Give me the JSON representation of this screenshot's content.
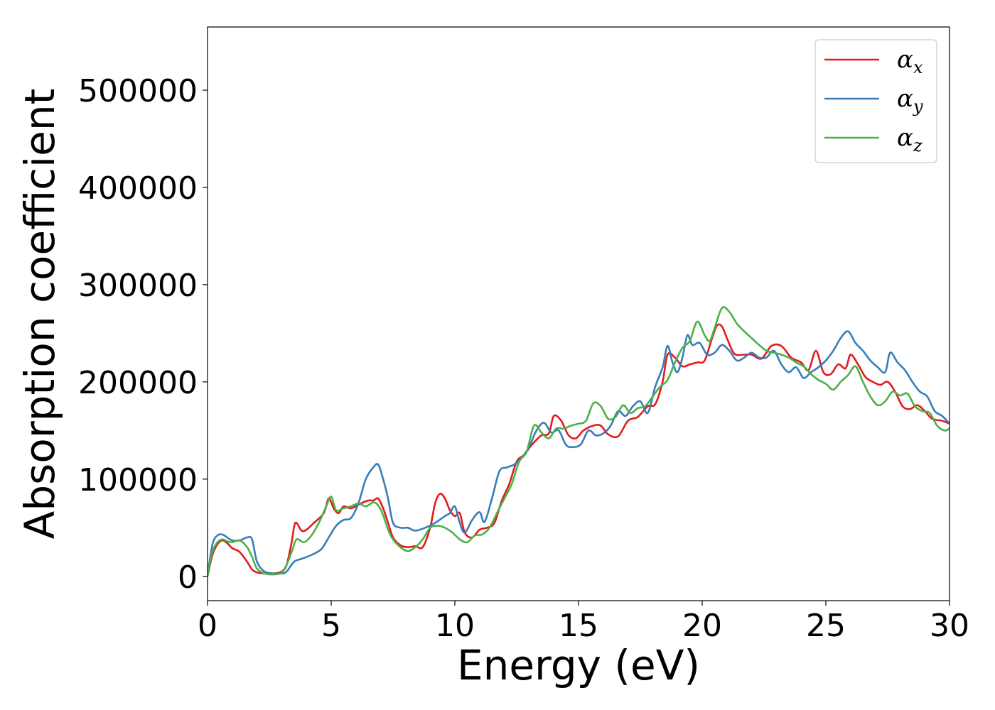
{
  "chart_data": {
    "type": "line",
    "xlabel": "Energy (eV)",
    "ylabel": "Absorption coefficient",
    "xlim": [
      0,
      30
    ],
    "ylim": [
      -25000,
      565000
    ],
    "xticks": [
      0,
      5,
      10,
      15,
      20,
      25,
      30
    ],
    "xtick_labels": [
      "0",
      "5",
      "10",
      "15",
      "20",
      "25",
      "30"
    ],
    "yticks": [
      0,
      100000,
      200000,
      300000,
      400000,
      500000
    ],
    "ytick_labels": [
      "0",
      "100000",
      "200000",
      "300000",
      "400000",
      "500000"
    ],
    "grid": false,
    "legend_position": "top-right",
    "series": [
      {
        "name": "α_x",
        "legend_symbol": "α",
        "legend_sub": "x",
        "color": "#e41a1c",
        "x": [
          0,
          0.2,
          0.4,
          0.6,
          0.8,
          1.0,
          1.3,
          1.6,
          1.8,
          2.0,
          2.3,
          2.7,
          3.0,
          3.2,
          3.4,
          3.55,
          3.8,
          4.0,
          4.3,
          4.7,
          4.9,
          5.1,
          5.3,
          5.5,
          5.8,
          6.2,
          6.5,
          6.7,
          6.9,
          7.1,
          7.3,
          7.5,
          7.8,
          8.1,
          8.4,
          8.7,
          9.0,
          9.2,
          9.4,
          9.6,
          9.8,
          10.0,
          10.2,
          10.4,
          10.7,
          11.0,
          11.3,
          11.6,
          11.9,
          12.2,
          12.5,
          12.8,
          13.1,
          13.5,
          13.8,
          14.0,
          14.3,
          14.6,
          14.9,
          15.2,
          15.6,
          15.9,
          16.2,
          16.6,
          17.0,
          17.4,
          17.8,
          18.1,
          18.4,
          18.6,
          18.9,
          19.2,
          19.5,
          19.8,
          20.1,
          20.4,
          20.6,
          20.8,
          21.0,
          21.3,
          21.7,
          22.0,
          22.4,
          22.8,
          23.2,
          23.6,
          24.0,
          24.3,
          24.6,
          24.9,
          25.2,
          25.5,
          25.8,
          26.0,
          26.3,
          26.6,
          26.9,
          27.2,
          27.5,
          27.8,
          28.1,
          28.4,
          28.7,
          29.0,
          29.3,
          29.7,
          30.0
        ],
        "y": [
          0,
          22000,
          33000,
          37000,
          34000,
          29000,
          25000,
          15000,
          7000,
          4000,
          3000,
          3000,
          5000,
          12000,
          35000,
          55000,
          47000,
          48000,
          55000,
          65000,
          80000,
          70000,
          65000,
          72000,
          70000,
          75000,
          78000,
          78000,
          80000,
          70000,
          55000,
          40000,
          32000,
          30000,
          31000,
          30000,
          50000,
          75000,
          85000,
          80000,
          68000,
          62000,
          65000,
          45000,
          40000,
          48000,
          50000,
          55000,
          78000,
          95000,
          118000,
          125000,
          135000,
          145000,
          147000,
          165000,
          160000,
          145000,
          142000,
          150000,
          155000,
          155000,
          146000,
          144000,
          160000,
          164000,
          175000,
          177000,
          200000,
          228000,
          225000,
          216000,
          218000,
          220000,
          222000,
          245000,
          258000,
          257000,
          245000,
          229000,
          228000,
          228000,
          224000,
          237000,
          237000,
          225000,
          220000,
          212000,
          232000,
          210000,
          208000,
          218000,
          214000,
          228000,
          218000,
          205000,
          200000,
          197000,
          200000,
          190000,
          175000,
          172000,
          176000,
          170000,
          162000,
          160000,
          157000
        ]
      },
      {
        "name": "α_y",
        "legend_symbol": "α",
        "legend_sub": "y",
        "color": "#377eb8",
        "x": [
          0,
          0.2,
          0.4,
          0.6,
          0.8,
          1.0,
          1.3,
          1.6,
          1.8,
          2.0,
          2.3,
          2.7,
          3.0,
          3.2,
          3.5,
          3.8,
          4.2,
          4.6,
          4.9,
          5.2,
          5.5,
          5.8,
          6.1,
          6.4,
          6.7,
          6.9,
          7.1,
          7.3,
          7.5,
          7.8,
          8.1,
          8.4,
          8.8,
          9.2,
          9.6,
          9.8,
          10.0,
          10.2,
          10.4,
          10.7,
          11.0,
          11.2,
          11.5,
          11.8,
          12.1,
          12.4,
          12.7,
          13.0,
          13.3,
          13.6,
          13.9,
          14.2,
          14.5,
          14.8,
          15.1,
          15.4,
          15.7,
          16.0,
          16.3,
          16.6,
          16.9,
          17.2,
          17.5,
          17.8,
          18.1,
          18.4,
          18.6,
          18.8,
          19.0,
          19.2,
          19.4,
          19.6,
          19.9,
          20.2,
          20.5,
          20.8,
          21.1,
          21.4,
          21.7,
          22.0,
          22.3,
          22.6,
          22.9,
          23.2,
          23.5,
          23.8,
          24.1,
          24.4,
          24.7,
          25.0,
          25.3,
          25.6,
          25.9,
          26.2,
          26.5,
          26.8,
          27.1,
          27.4,
          27.6,
          27.9,
          28.2,
          28.5,
          28.8,
          29.1,
          29.4,
          29.7,
          30.0
        ],
        "y": [
          0,
          33000,
          42000,
          43000,
          40000,
          37000,
          37000,
          40000,
          38000,
          15000,
          5000,
          3000,
          3000,
          5000,
          15000,
          18000,
          22000,
          28000,
          40000,
          52000,
          58000,
          60000,
          75000,
          100000,
          112000,
          115000,
          100000,
          80000,
          55000,
          50000,
          50000,
          47000,
          50000,
          55000,
          62000,
          65000,
          72000,
          55000,
          45000,
          58000,
          66000,
          56000,
          80000,
          108000,
          112000,
          115000,
          122000,
          133000,
          150000,
          158000,
          148000,
          150000,
          135000,
          133000,
          136000,
          150000,
          145000,
          147000,
          155000,
          170000,
          165000,
          175000,
          180000,
          168000,
          195000,
          215000,
          237000,
          220000,
          210000,
          225000,
          248000,
          238000,
          240000,
          228000,
          230000,
          238000,
          232000,
          222000,
          225000,
          230000,
          225000,
          225000,
          232000,
          218000,
          210000,
          215000,
          204000,
          210000,
          215000,
          222000,
          232000,
          245000,
          252000,
          240000,
          232000,
          222000,
          215000,
          210000,
          230000,
          220000,
          212000,
          200000,
          190000,
          185000,
          170000,
          165000,
          157000
        ]
      },
      {
        "name": "α_z",
        "legend_symbol": "α",
        "legend_sub": "z",
        "color": "#4daf4a",
        "x": [
          0,
          0.2,
          0.4,
          0.6,
          0.8,
          1.0,
          1.3,
          1.6,
          1.8,
          2.0,
          2.3,
          2.7,
          3.0,
          3.2,
          3.4,
          3.6,
          3.9,
          4.2,
          4.5,
          4.8,
          5.0,
          5.2,
          5.5,
          5.8,
          6.1,
          6.4,
          6.7,
          6.9,
          7.1,
          7.3,
          7.5,
          7.8,
          8.1,
          8.4,
          8.7,
          9.0,
          9.3,
          9.6,
          9.9,
          10.2,
          10.5,
          10.8,
          11.1,
          11.4,
          11.7,
          12.0,
          12.3,
          12.6,
          12.9,
          13.2,
          13.5,
          13.8,
          14.1,
          14.4,
          14.7,
          15.0,
          15.3,
          15.6,
          15.9,
          16.2,
          16.5,
          16.8,
          17.1,
          17.4,
          17.7,
          18.0,
          18.3,
          18.6,
          18.9,
          19.2,
          19.5,
          19.8,
          20.1,
          20.3,
          20.5,
          20.8,
          21.1,
          21.4,
          21.7,
          22.0,
          22.3,
          22.6,
          22.9,
          23.2,
          23.5,
          23.8,
          24.1,
          24.4,
          24.7,
          25.0,
          25.3,
          25.6,
          25.9,
          26.2,
          26.5,
          26.8,
          27.1,
          27.4,
          27.7,
          28.0,
          28.3,
          28.6,
          28.9,
          29.2,
          29.5,
          29.8,
          30.0
        ],
        "y": [
          0,
          25000,
          35000,
          38000,
          36000,
          35000,
          37000,
          30000,
          20000,
          8000,
          3000,
          2000,
          4000,
          12000,
          25000,
          38000,
          35000,
          42000,
          55000,
          72000,
          82000,
          68000,
          70000,
          72000,
          75000,
          72000,
          76000,
          73000,
          63000,
          48000,
          38000,
          30000,
          26000,
          30000,
          38000,
          50000,
          52000,
          50000,
          45000,
          38000,
          35000,
          42000,
          43000,
          50000,
          65000,
          80000,
          95000,
          118000,
          128000,
          155000,
          148000,
          142000,
          152000,
          152000,
          155000,
          157000,
          160000,
          178000,
          175000,
          162000,
          164000,
          176000,
          168000,
          173000,
          175000,
          185000,
          195000,
          202000,
          220000,
          235000,
          242000,
          262000,
          248000,
          242000,
          255000,
          276000,
          272000,
          260000,
          252000,
          245000,
          238000,
          232000,
          230000,
          228000,
          225000,
          220000,
          216000,
          208000,
          202000,
          198000,
          192000,
          200000,
          207000,
          216000,
          200000,
          185000,
          176000,
          180000,
          190000,
          186000,
          188000,
          175000,
          170000,
          168000,
          155000,
          150000,
          152000
        ]
      }
    ]
  }
}
